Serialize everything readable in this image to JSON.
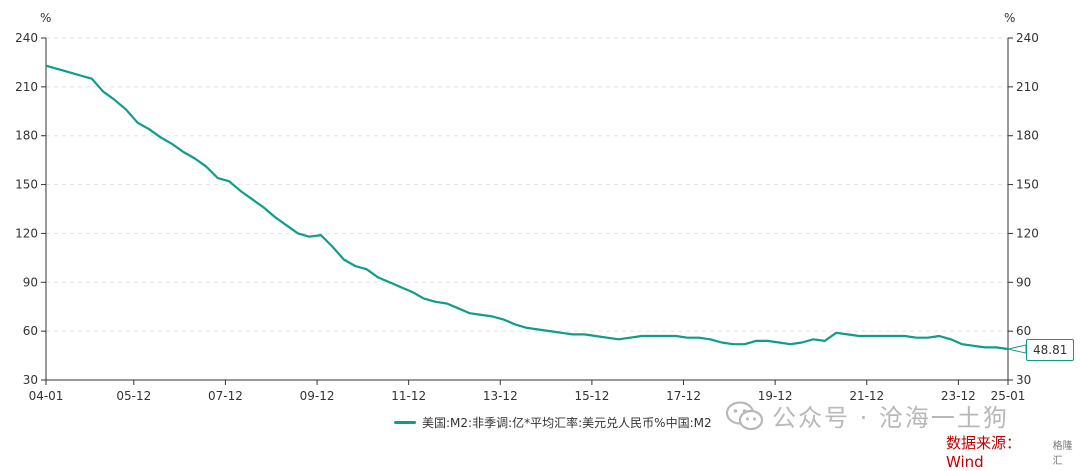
{
  "chart_data": {
    "type": "line",
    "y_unit_left": "%",
    "y_unit_right": "%",
    "ylim": [
      30,
      240
    ],
    "yticks": [
      30,
      60,
      90,
      120,
      150,
      180,
      210,
      240
    ],
    "xticks": [
      "04-01",
      "05-12",
      "07-12",
      "09-12",
      "11-12",
      "13-12",
      "15-12",
      "17-12",
      "19-12",
      "21-12",
      "23-12",
      "25-01"
    ],
    "grid": true,
    "legend_position": "bottom",
    "series": [
      {
        "name": "美国:M2:非季调:亿*平均汇率:美元兑人民币%中国:M2",
        "color": "#0f9c8a",
        "last_value_label": "48.81",
        "points": [
          [
            "2004-01",
            223
          ],
          [
            "2004-04",
            221
          ],
          [
            "2004-07",
            219
          ],
          [
            "2004-10",
            217
          ],
          [
            "2005-01",
            215
          ],
          [
            "2005-04",
            207
          ],
          [
            "2005-07",
            202
          ],
          [
            "2005-10",
            196
          ],
          [
            "2006-01",
            188
          ],
          [
            "2006-04",
            184
          ],
          [
            "2006-07",
            179
          ],
          [
            "2006-10",
            175
          ],
          [
            "2007-01",
            170
          ],
          [
            "2007-04",
            166
          ],
          [
            "2007-07",
            161
          ],
          [
            "2007-10",
            154
          ],
          [
            "2008-01",
            152
          ],
          [
            "2008-04",
            146
          ],
          [
            "2008-07",
            141
          ],
          [
            "2008-10",
            136
          ],
          [
            "2009-01",
            130
          ],
          [
            "2009-04",
            125
          ],
          [
            "2009-07",
            120
          ],
          [
            "2009-10",
            118
          ],
          [
            "2010-01",
            119
          ],
          [
            "2010-04",
            112
          ],
          [
            "2010-07",
            104
          ],
          [
            "2010-10",
            100
          ],
          [
            "2011-01",
            98
          ],
          [
            "2011-04",
            93
          ],
          [
            "2011-07",
            90
          ],
          [
            "2011-10",
            87
          ],
          [
            "2012-01",
            84
          ],
          [
            "2012-04",
            80
          ],
          [
            "2012-07",
            78
          ],
          [
            "2012-10",
            77
          ],
          [
            "2013-01",
            74
          ],
          [
            "2013-04",
            71
          ],
          [
            "2013-07",
            70
          ],
          [
            "2013-10",
            69
          ],
          [
            "2014-01",
            67
          ],
          [
            "2014-04",
            64
          ],
          [
            "2014-07",
            62
          ],
          [
            "2014-10",
            61
          ],
          [
            "2015-01",
            60
          ],
          [
            "2015-04",
            59
          ],
          [
            "2015-07",
            58
          ],
          [
            "2015-10",
            58
          ],
          [
            "2016-01",
            57
          ],
          [
            "2016-04",
            56
          ],
          [
            "2016-07",
            55
          ],
          [
            "2016-10",
            56
          ],
          [
            "2017-01",
            57
          ],
          [
            "2017-04",
            57
          ],
          [
            "2017-07",
            57
          ],
          [
            "2017-10",
            57
          ],
          [
            "2018-01",
            56
          ],
          [
            "2018-04",
            56
          ],
          [
            "2018-07",
            55
          ],
          [
            "2018-10",
            53
          ],
          [
            "2019-01",
            52
          ],
          [
            "2019-04",
            52
          ],
          [
            "2019-07",
            54
          ],
          [
            "2019-10",
            54
          ],
          [
            "2020-01",
            53
          ],
          [
            "2020-04",
            52
          ],
          [
            "2020-07",
            53
          ],
          [
            "2020-10",
            55
          ],
          [
            "2021-01",
            54
          ],
          [
            "2021-04",
            59
          ],
          [
            "2021-07",
            58
          ],
          [
            "2021-10",
            57
          ],
          [
            "2022-01",
            57
          ],
          [
            "2022-04",
            57
          ],
          [
            "2022-07",
            57
          ],
          [
            "2022-10",
            57
          ],
          [
            "2023-01",
            56
          ],
          [
            "2023-04",
            56
          ],
          [
            "2023-07",
            57
          ],
          [
            "2023-10",
            55
          ],
          [
            "2024-01",
            52
          ],
          [
            "2024-04",
            51
          ],
          [
            "2024-07",
            50
          ],
          [
            "2024-10",
            50
          ],
          [
            "2025-01",
            49
          ]
        ]
      }
    ]
  },
  "watermark": {
    "text": "公众号 · 沧海一土狗",
    "icon": "wechat-icon"
  },
  "source": {
    "text": "数据来源：Wind",
    "logo_text": "格隆汇",
    "color": "#c00000"
  }
}
